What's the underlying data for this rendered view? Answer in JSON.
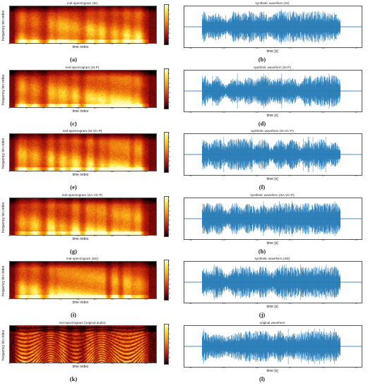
{
  "figures": [
    {
      "spec_title": "mel-spectrogram (SI)",
      "wave_title": "synthetic waveform (SI)",
      "spec_caption": "(a)",
      "wave_caption": "(b)",
      "style": "smooth"
    },
    {
      "spec_title": "mel-spectrogram (SI-P)",
      "wave_title": "synthetic waveform (SI-P)",
      "spec_caption": "(c)",
      "wave_caption": "(d)",
      "style": "smooth"
    },
    {
      "spec_title": "mel-spectrogram (SI-VC-P)",
      "wave_title": "synthetic waveform (SI-VC-P)",
      "spec_caption": "(e)",
      "wave_caption": "(f)",
      "style": "smooth"
    },
    {
      "spec_title": "mel-spectrogram (SA-VC-P)",
      "wave_title": "synthetic waveform (SA-VC-P)",
      "spec_caption": "(g)",
      "wave_caption": "(h)",
      "style": "smooth"
    },
    {
      "spec_title": "mel-spectrogram (SD)",
      "wave_title": "synthetic waveform (SD)",
      "spec_caption": "(i)",
      "wave_caption": "(j)",
      "style": "smooth"
    },
    {
      "spec_title": "mel-spectrogram (original audio)",
      "wave_title": "original waveform",
      "spec_caption": "(k)",
      "wave_caption": "(l)",
      "style": "harmonic"
    }
  ],
  "axes": {
    "spec_xlabel": "time index",
    "spec_ylabel": "frequency bin index",
    "wave_xlabel": "time [s]",
    "spec_xticks": [
      "0",
      "25",
      "50",
      "75",
      "100",
      "125",
      "150",
      "175",
      "200"
    ],
    "wave_xticks": [
      "0.0",
      "0.5",
      "1.0",
      "1.5",
      "2.0",
      "2.5"
    ],
    "colorbar_ticks": [
      "1",
      "0",
      "-1",
      "-2",
      "-3",
      "-4",
      "-5",
      "-6",
      "-7"
    ]
  },
  "colors": {
    "waveform": "#1f77b4"
  }
}
